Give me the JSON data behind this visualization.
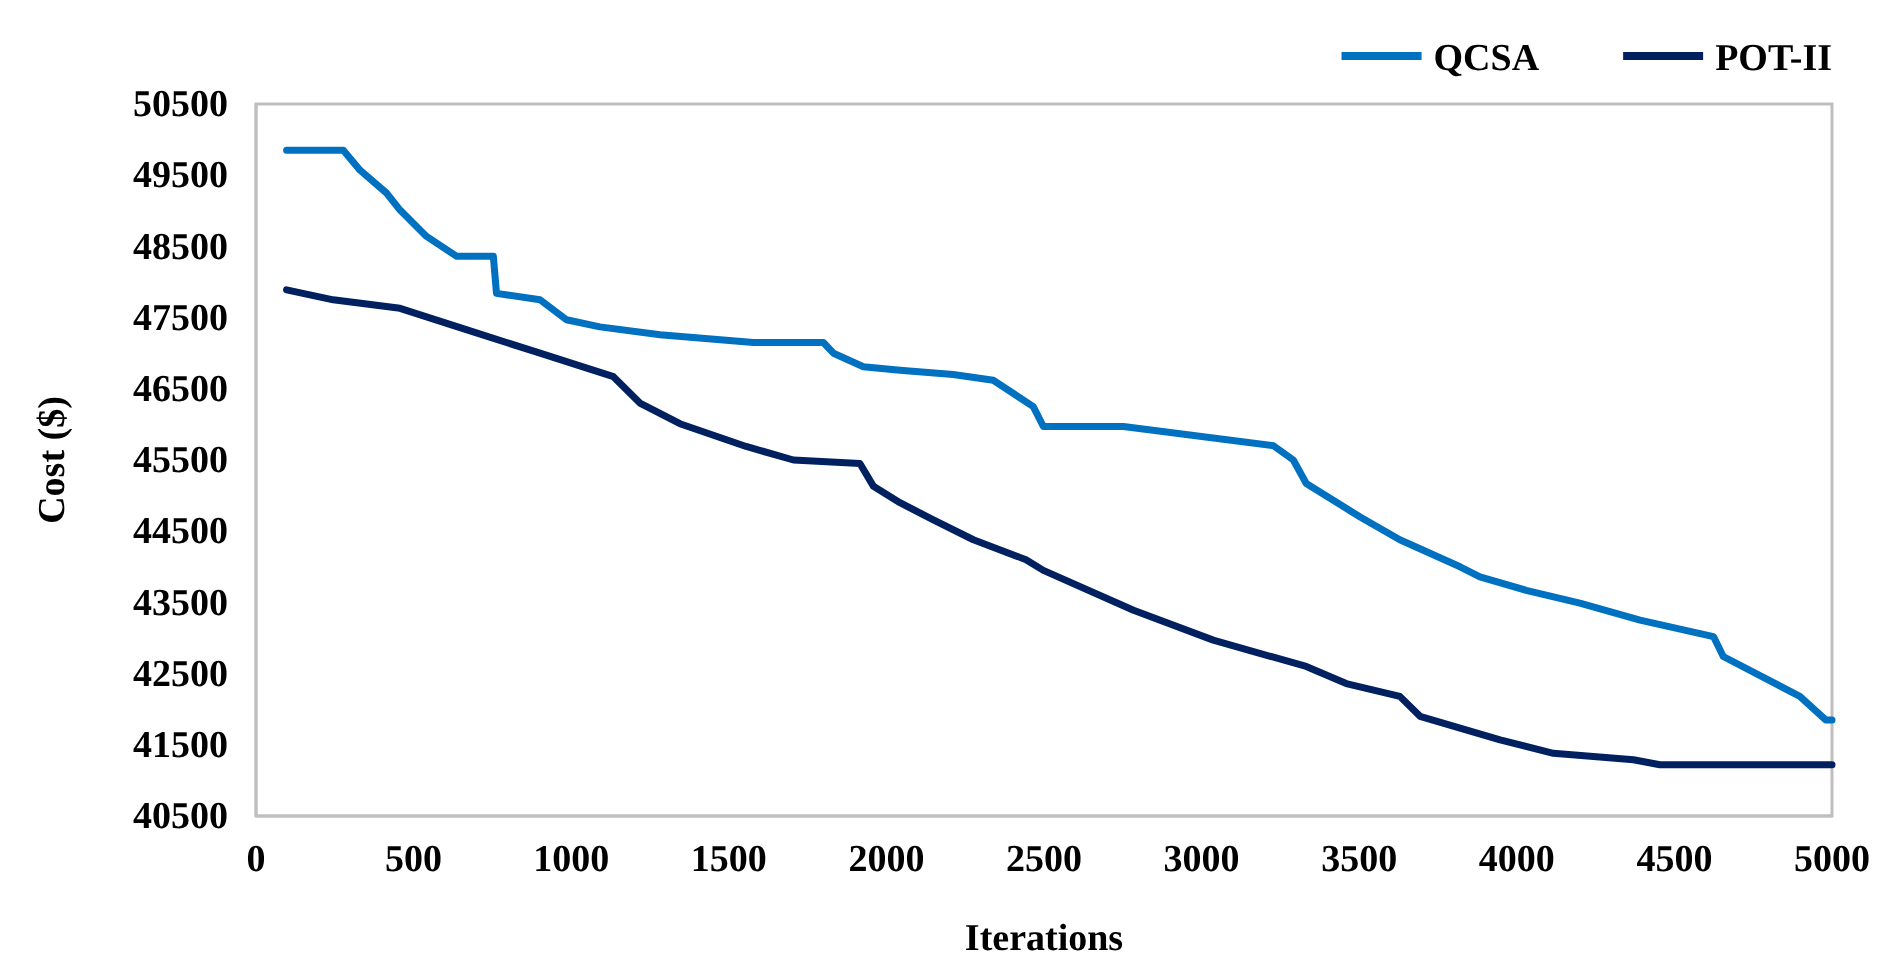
{
  "chart_data": {
    "type": "line",
    "xlabel": "Iterations",
    "ylabel": "Cost ($)",
    "xlim": [
      0,
      5000
    ],
    "xticks": [
      0,
      500,
      1000,
      1500,
      2000,
      2500,
      3000,
      3500,
      4000,
      4500,
      5000
    ],
    "ylim": [
      40500,
      50500
    ],
    "yticks": [
      40500,
      41500,
      42500,
      43500,
      44500,
      45500,
      46500,
      47500,
      48500,
      49500,
      50500
    ],
    "grid": false,
    "legend": "top right",
    "line_style": "solid",
    "marker": "none",
    "series": [
      {
        "name": "QCSA",
        "color": "#0070c0",
        "x": [
          97,
          277,
          330,
          414,
          457,
          541,
          637,
          753,
          763,
          901,
          985,
          1091,
          1282,
          1578,
          1800,
          1832,
          1927,
          2043,
          2212,
          2339,
          2466,
          2498,
          2752,
          3228,
          3291,
          3332,
          3503,
          3629,
          3820,
          3883,
          4030,
          4200,
          4391,
          4624,
          4655,
          4898,
          4980,
          5000
        ],
        "values": [
          49850,
          49850,
          49570,
          49250,
          49010,
          48640,
          48360,
          48360,
          47840,
          47750,
          47470,
          47370,
          47260,
          47150,
          47150,
          47000,
          46810,
          46760,
          46700,
          46620,
          46250,
          45970,
          45970,
          45700,
          45500,
          45170,
          44700,
          44380,
          44000,
          43860,
          43670,
          43490,
          43250,
          43020,
          42740,
          42180,
          41850,
          41850
        ]
      },
      {
        "name": "POT-II",
        "color": "#002060",
        "x": [
          97,
          245,
          457,
          667,
          901,
          1134,
          1218,
          1345,
          1555,
          1705,
          1916,
          1959,
          2043,
          2149,
          2276,
          2443,
          2498,
          2784,
          3037,
          3332,
          3459,
          3629,
          3693,
          3947,
          4116,
          4370,
          4454,
          5000
        ],
        "values": [
          47890,
          47750,
          47630,
          47330,
          47000,
          46670,
          46300,
          46010,
          45690,
          45500,
          45450,
          45130,
          44900,
          44660,
          44380,
          44100,
          43950,
          43390,
          42970,
          42600,
          42360,
          42180,
          41900,
          41570,
          41380,
          41290,
          41220,
          41220
        ]
      }
    ]
  }
}
